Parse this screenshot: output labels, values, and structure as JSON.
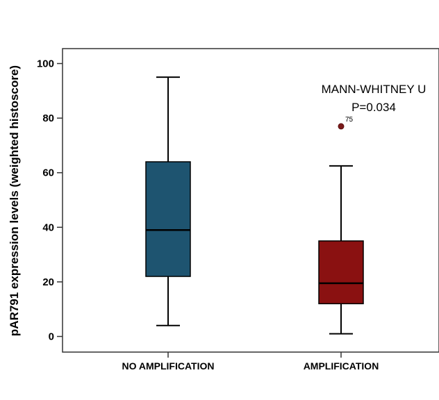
{
  "chart_data": {
    "type": "boxplot",
    "title": "",
    "ylabel": "pAR791 expression levels (weighted histoscore)",
    "xlabel": "",
    "ylim": [
      0,
      105
    ],
    "yticks": [
      0,
      20,
      40,
      60,
      80,
      100
    ],
    "grid": false,
    "categories": [
      "NO AMPLIFICATION",
      "AMPLIFICATION"
    ],
    "series": [
      {
        "category": "NO AMPLIFICATION",
        "min": 4,
        "q1": 22,
        "median": 39,
        "q3": 64,
        "max": 95,
        "color": "#1e5470",
        "outliers": []
      },
      {
        "category": "AMPLIFICATION",
        "min": 1,
        "q1": 12,
        "median": 19.5,
        "q3": 35,
        "max": 62.5,
        "color": "#8a1111",
        "outliers": [
          {
            "value": 77,
            "label": "75"
          }
        ]
      }
    ],
    "annotations": [
      "MANN-WHITNEY U",
      "P=0.034"
    ]
  }
}
